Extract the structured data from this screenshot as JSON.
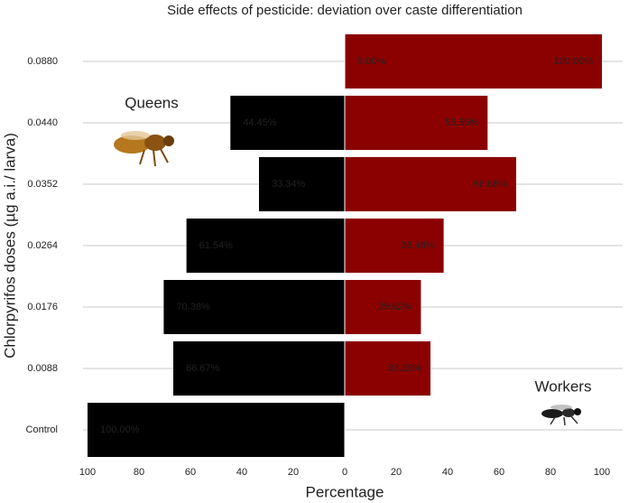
{
  "chart_data": {
    "type": "diverging-bar",
    "title": "Side effects of pesticide: deviation over caste differentiation",
    "xlabel": "Percentage",
    "ylabel": "Chlorpyrifos doses (µg a.i./ larva)",
    "categories": [
      "0.0880",
      "0.0440",
      "0.0352",
      "0.0264",
      "0.0176",
      "0.0088",
      "Control"
    ],
    "series": [
      {
        "name": "Queens",
        "side": "left",
        "color": "#000000",
        "label_color": "#ffffff",
        "values": [
          0,
          44.45,
          33.34,
          61.54,
          70.38,
          66.67,
          100
        ],
        "value_labels": [
          "0.00%",
          "44.45%",
          "33.34%",
          "61.54%",
          "70.38%",
          "66.67%",
          "100.00%"
        ]
      },
      {
        "name": "Workers",
        "side": "right",
        "color": "#8b0000",
        "label_color": "#1a1a1a",
        "values": [
          100,
          55.55,
          66.66,
          38.46,
          29.62,
          33.33,
          0
        ],
        "value_labels": [
          "100.00%",
          "55.55%",
          "66.66%",
          "38.46%",
          "29.62%",
          "33.33%",
          null
        ]
      }
    ],
    "xlim": [
      -100,
      100
    ],
    "xticks": [
      {
        "value": -100,
        "label": "100"
      },
      {
        "value": -80,
        "label": "80"
      },
      {
        "value": -60,
        "label": "60"
      },
      {
        "value": -40,
        "label": "40"
      },
      {
        "value": -20,
        "label": "20"
      },
      0,
      20,
      40,
      60,
      80,
      100
    ],
    "grid": true
  }
}
